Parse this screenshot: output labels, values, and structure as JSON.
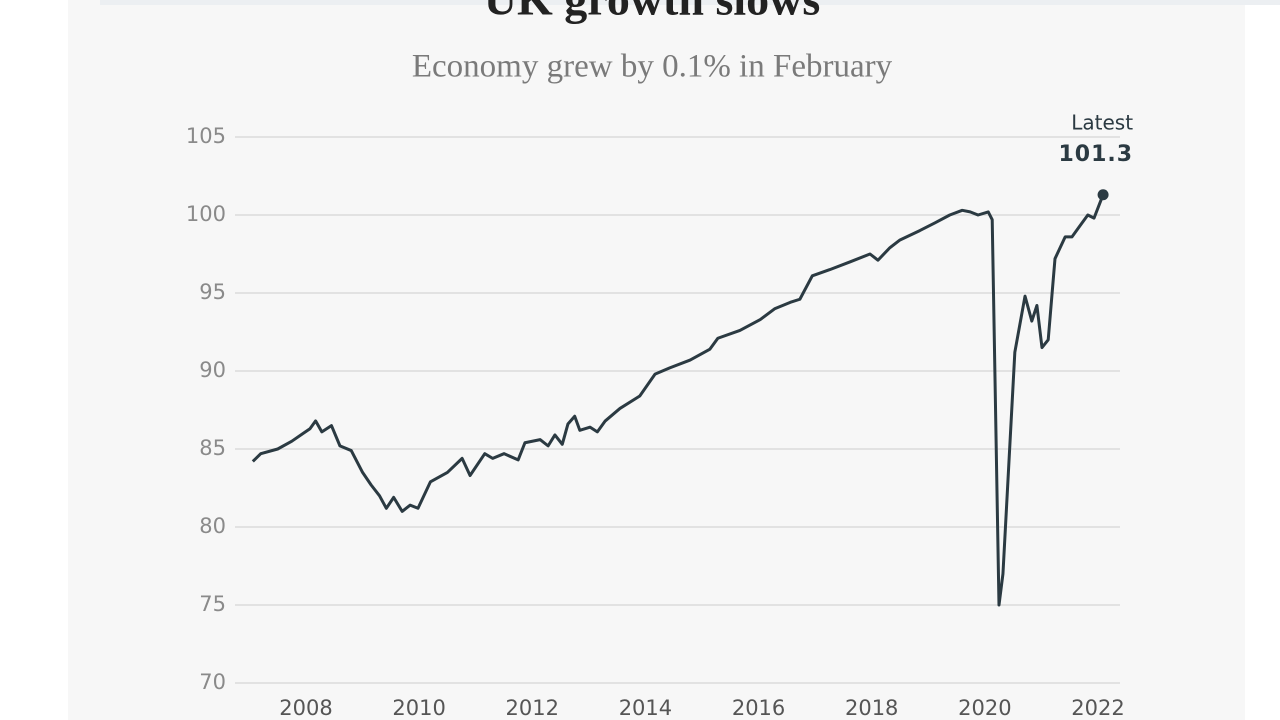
{
  "chart_data": {
    "type": "line",
    "title": "UK growth slows",
    "subtitle": "Economy grew by 0.1% in February",
    "annotation": "Latest",
    "color": "#2b3a42",
    "grid": true,
    "x": [
      2007.06,
      2007.2,
      2007.5,
      2007.75,
      2007.95,
      2008.07,
      2008.17,
      2008.28,
      2008.45,
      2008.6,
      2008.8,
      2009.0,
      2009.15,
      2009.3,
      2009.42,
      2009.55,
      2009.7,
      2009.84,
      2009.98,
      2010.2,
      2010.5,
      2010.76,
      2010.9,
      2011.16,
      2011.3,
      2011.5,
      2011.75,
      2011.87,
      2012.14,
      2012.28,
      2012.4,
      2012.53,
      2012.63,
      2012.75,
      2012.84,
      2013.02,
      2013.15,
      2013.29,
      2013.55,
      2013.9,
      2014.17,
      2014.43,
      2014.79,
      2015.14,
      2015.28,
      2015.67,
      2016.03,
      2016.29,
      2016.56,
      2016.73,
      2016.95,
      2017.26,
      2017.62,
      2017.97,
      2018.11,
      2018.32,
      2018.5,
      2018.85,
      2019.12,
      2019.38,
      2019.6,
      2019.74,
      2019.88,
      2020.06,
      2020.13,
      2020.25,
      2020.32,
      2020.53,
      2020.71,
      2020.83,
      2020.92,
      2021.01,
      2021.12,
      2021.24,
      2021.42,
      2021.54,
      2021.68,
      2021.82,
      2021.93,
      2022.09
    ],
    "values": [
      84.2,
      84.7,
      85.0,
      85.5,
      86.0,
      86.3,
      86.8,
      86.1,
      86.5,
      85.2,
      84.9,
      83.5,
      82.7,
      82.0,
      81.2,
      81.9,
      81.0,
      81.4,
      81.2,
      82.9,
      83.5,
      84.4,
      83.3,
      84.7,
      84.4,
      84.7,
      84.3,
      85.4,
      85.6,
      85.2,
      85.9,
      85.3,
      86.6,
      87.1,
      86.2,
      86.4,
      86.1,
      86.8,
      87.6,
      88.4,
      89.8,
      90.2,
      90.7,
      91.4,
      92.1,
      92.6,
      93.3,
      94.0,
      94.4,
      94.6,
      96.1,
      96.5,
      97.0,
      97.5,
      97.1,
      97.9,
      98.4,
      99.0,
      99.5,
      100.0,
      100.3,
      100.2,
      100.0,
      100.2,
      99.7,
      75.0,
      77.0,
      91.2,
      94.8,
      93.2,
      94.2,
      91.5,
      92.0,
      97.2,
      98.6,
      98.6,
      99.3,
      100.0,
      99.8,
      101.3
    ],
    "xlim": [
      2006.745,
      2022.389
    ],
    "xticks": [
      2008,
      2010,
      2012,
      2014,
      2016,
      2018,
      2020,
      2022
    ],
    "ylim": [
      70,
      105
    ],
    "yticks": [
      70,
      75,
      80,
      85,
      90,
      95,
      100,
      105
    ]
  }
}
